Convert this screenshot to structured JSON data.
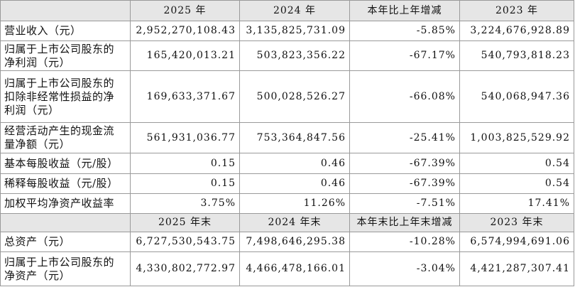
{
  "table": {
    "header1": [
      "2025 年",
      "2024 年",
      "本年比上年增减",
      "2023 年"
    ],
    "rows1": [
      [
        "营业收入（元）",
        "2,952,270,108.43",
        "3,135,825,731.09",
        "-5.85%",
        "3,224,676,928.89"
      ],
      [
        "归属于上市公司股东的净利润（元）",
        "165,420,013.21",
        "503,823,356.22",
        "-67.17%",
        "540,793,818.23"
      ],
      [
        "归属于上市公司股东的扣除非经常性损益的净利润（元）",
        "169,633,371.67",
        "500,028,526.27",
        "-66.08%",
        "540,068,947.36"
      ],
      [
        "经营活动产生的现金流量净额（元）",
        "561,931,036.77",
        "753,364,847.56",
        "-25.41%",
        "1,003,825,529.92"
      ],
      [
        "基本每股收益（元/股）",
        "0.15",
        "0.46",
        "-67.39%",
        "0.54"
      ],
      [
        "稀释每股收益（元/股）",
        "0.15",
        "0.46",
        "-67.39%",
        "0.54"
      ],
      [
        "加权平均净资产收益率",
        "3.75%",
        "11.26%",
        "-7.51%",
        "17.41%"
      ]
    ],
    "header2": [
      "2025 年末",
      "2024 年末",
      "本年末比上年末增减",
      "2023 年末"
    ],
    "rows2": [
      [
        "总资产（元）",
        "6,727,530,543.75",
        "7,498,646,295.38",
        "-10.28%",
        "6,574,994,691.06"
      ],
      [
        "归属于上市公司股东的净资产（元）",
        "4,330,802,772.97",
        "4,466,478,166.01",
        "-3.04%",
        "4,421,287,307.41"
      ]
    ]
  }
}
